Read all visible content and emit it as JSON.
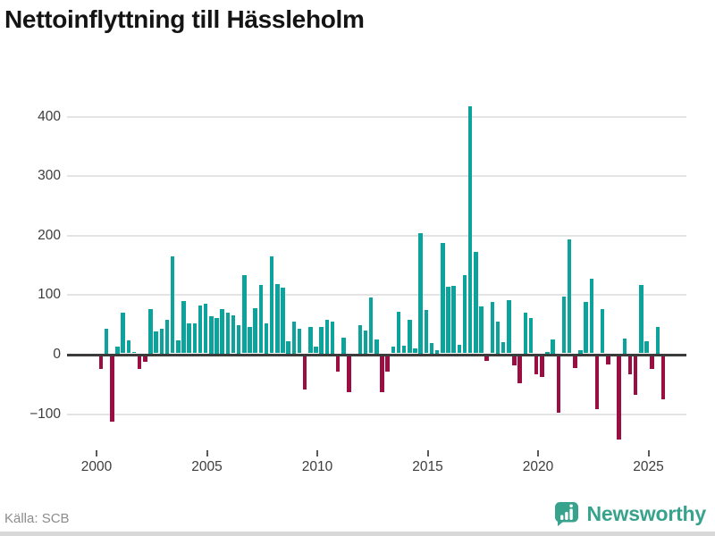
{
  "title": "Nettoinflyttning till Hässleholm",
  "footer": {
    "source": "Källa: SCB",
    "brand": "Newsworthy"
  },
  "colors": {
    "positive": "#0ca39c",
    "negative": "#9a0e42",
    "grid": "#e4e4e4",
    "zero_line": "#3b3b3b",
    "axis_text": "#3d3d3d",
    "source_text": "#8c8c8c",
    "brand": "#38a38d",
    "bottom_strip": "#d8d8d8",
    "title_text": "#141414"
  },
  "y_axis": {
    "ticks": [
      400,
      300,
      200,
      100,
      0,
      -100
    ],
    "labels": [
      "400",
      "300",
      "200",
      "100",
      "0",
      "−100"
    ]
  },
  "x_axis": {
    "ticks": [
      "2000",
      "2005",
      "2010",
      "2015",
      "2020",
      "2025"
    ]
  },
  "chart_data": {
    "type": "bar",
    "title": "Nettoinflyttning till Hässleholm",
    "xlabel": "",
    "ylabel": "",
    "ylim": [
      -150,
      430
    ],
    "grid": true,
    "legend_position": "none",
    "start_quarter": "2000Q1",
    "end_quarter": "2025Q3",
    "quarters": [
      "2000Q1",
      "2000Q2",
      "2000Q3",
      "2000Q4",
      "2001Q1",
      "2001Q2",
      "2001Q3",
      "2001Q4",
      "2002Q1",
      "2002Q2",
      "2002Q3",
      "2002Q4",
      "2003Q1",
      "2003Q2",
      "2003Q3",
      "2003Q4",
      "2004Q1",
      "2004Q2",
      "2004Q3",
      "2004Q4",
      "2005Q1",
      "2005Q2",
      "2005Q3",
      "2005Q4",
      "2006Q1",
      "2006Q2",
      "2006Q3",
      "2006Q4",
      "2007Q1",
      "2007Q2",
      "2007Q3",
      "2007Q4",
      "2008Q1",
      "2008Q2",
      "2008Q3",
      "2008Q4",
      "2009Q1",
      "2009Q2",
      "2009Q3",
      "2009Q4",
      "2010Q1",
      "2010Q2",
      "2010Q3",
      "2010Q4",
      "2011Q1",
      "2011Q2",
      "2011Q3",
      "2011Q4",
      "2012Q1",
      "2012Q2",
      "2012Q3",
      "2012Q4",
      "2013Q1",
      "2013Q2",
      "2013Q3",
      "2013Q4",
      "2014Q1",
      "2014Q2",
      "2014Q3",
      "2014Q4",
      "2015Q1",
      "2015Q2",
      "2015Q3",
      "2015Q4",
      "2016Q1",
      "2016Q2",
      "2016Q3",
      "2016Q4",
      "2017Q1",
      "2017Q2",
      "2017Q3",
      "2017Q4",
      "2018Q1",
      "2018Q2",
      "2018Q3",
      "2018Q4",
      "2019Q1",
      "2019Q2",
      "2019Q3",
      "2019Q4",
      "2020Q1",
      "2020Q2",
      "2020Q3",
      "2020Q4",
      "2021Q1",
      "2021Q2",
      "2021Q3",
      "2021Q4",
      "2022Q1",
      "2022Q2",
      "2022Q3",
      "2022Q4",
      "2023Q1",
      "2023Q2",
      "2023Q3",
      "2023Q4",
      "2024Q1",
      "2024Q2",
      "2024Q3",
      "2024Q4",
      "2025Q1",
      "2025Q2",
      "2025Q3"
    ],
    "values": [
      -22,
      42,
      -110,
      12,
      68,
      22,
      2,
      -22,
      -9,
      75,
      37,
      42,
      57,
      163,
      22,
      88,
      50,
      50,
      81,
      84,
      63,
      60,
      75,
      69,
      64,
      48,
      131,
      44,
      76,
      115,
      51,
      163,
      117,
      110,
      21,
      54,
      41,
      -56,
      44,
      11,
      45,
      57,
      54,
      -26,
      27,
      -61,
      0,
      48,
      39,
      94,
      24,
      -60,
      -26,
      11,
      70,
      13,
      56,
      8,
      202,
      73,
      18,
      6,
      186,
      112,
      114,
      14,
      131,
      415,
      171,
      79,
      -8,
      87,
      54,
      19,
      90,
      -15,
      -46,
      69,
      59,
      -30,
      -35,
      3,
      24,
      -96,
      95,
      191,
      -20,
      6,
      86,
      126,
      -90,
      74,
      -14,
      0,
      -140,
      25,
      -30,
      -65,
      115,
      20,
      -22,
      45,
      -72
    ]
  }
}
